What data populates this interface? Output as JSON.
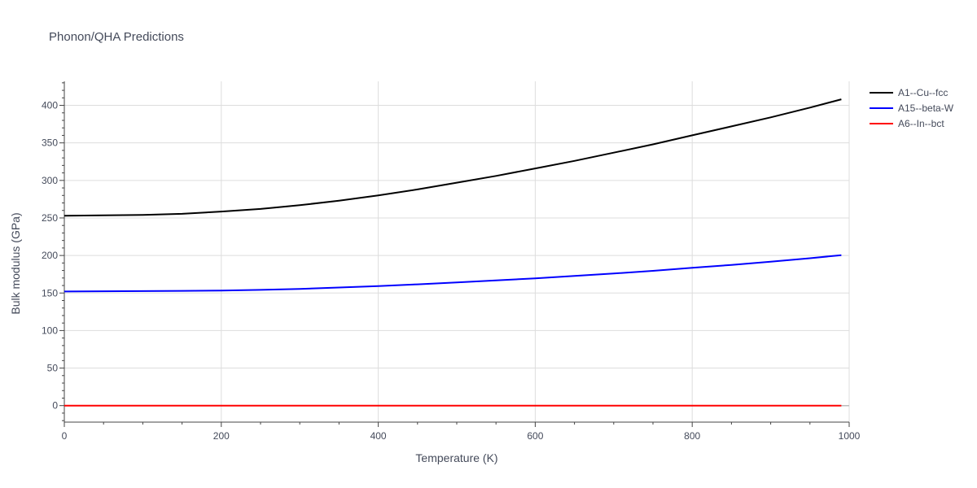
{
  "chart_data": {
    "type": "line",
    "title": "Phonon/QHA Predictions",
    "xlabel": "Temperature (K)",
    "ylabel": "Bulk modulus (GPa)",
    "xlim": [
      0,
      1000
    ],
    "ylim": [
      -22,
      432
    ],
    "x_ticks": [
      0,
      200,
      400,
      600,
      800,
      1000
    ],
    "y_ticks": [
      0,
      50,
      100,
      150,
      200,
      250,
      300,
      350,
      400
    ],
    "grid": true,
    "legend_position": "top-right",
    "series": [
      {
        "name": "A1--Cu--fcc",
        "color": "#000000",
        "x": [
          0,
          50,
          100,
          150,
          200,
          250,
          300,
          350,
          400,
          450,
          500,
          550,
          600,
          650,
          700,
          750,
          800,
          850,
          900,
          950,
          990
        ],
        "y": [
          253,
          253.5,
          254,
          255.5,
          258.5,
          262,
          267,
          273,
          280,
          288,
          297,
          306,
          316,
          326,
          337,
          348,
          360,
          372,
          384,
          397,
          408
        ]
      },
      {
        "name": "A15--beta-W",
        "color": "#0000ff",
        "x": [
          0,
          50,
          100,
          150,
          200,
          250,
          300,
          350,
          400,
          450,
          500,
          550,
          600,
          650,
          700,
          750,
          800,
          850,
          900,
          950,
          990
        ],
        "y": [
          152,
          152.3,
          152.6,
          152.9,
          153.2,
          154.2,
          155.5,
          157.3,
          159.3,
          161.5,
          164,
          166.7,
          169.6,
          172.8,
          176,
          179.5,
          183.5,
          187.5,
          191.8,
          196.3,
          200.5
        ]
      },
      {
        "name": "A6--In--bct",
        "color": "#ff0000",
        "x": [
          0,
          100,
          200,
          300,
          400,
          500,
          600,
          700,
          800,
          900,
          990
        ],
        "y": [
          0,
          0,
          0,
          0,
          0,
          0,
          0,
          0,
          0,
          0,
          0
        ]
      }
    ]
  }
}
